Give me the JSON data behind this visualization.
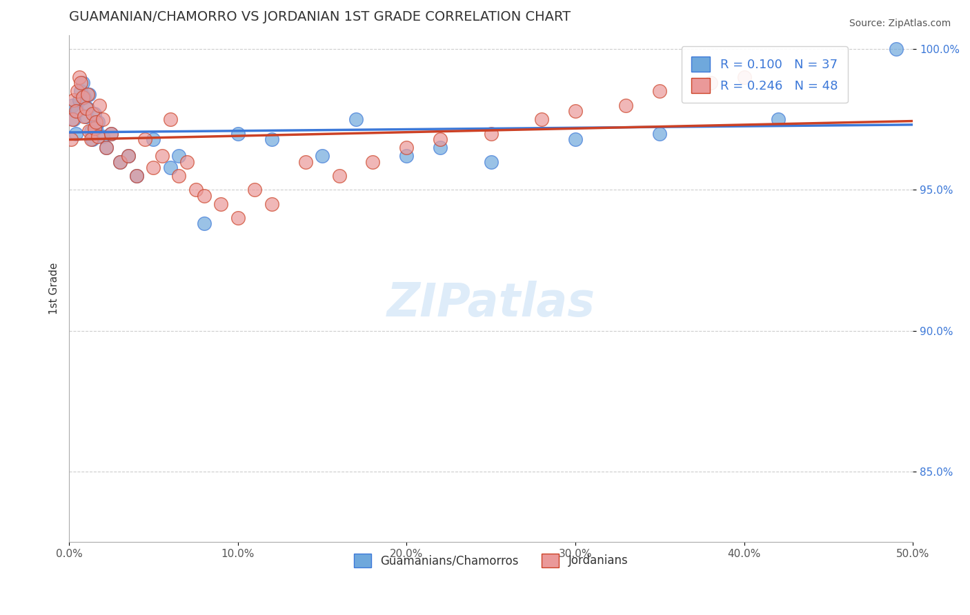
{
  "title": "GUAMANIAN/CHAMORRO VS JORDANIAN 1ST GRADE CORRELATION CHART",
  "source_text": "Source: ZipAtlas.com",
  "xlabel": "",
  "ylabel": "1st Grade",
  "xlim": [
    0.0,
    0.5
  ],
  "ylim": [
    0.825,
    1.005
  ],
  "xticks": [
    0.0,
    0.1,
    0.2,
    0.3,
    0.4,
    0.5
  ],
  "xticklabels": [
    "0.0%",
    "10.0%",
    "20.0%",
    "30.0%",
    "40.0%",
    "50.0%"
  ],
  "yticks": [
    0.85,
    0.9,
    0.95,
    1.0
  ],
  "yticklabels": [
    "85.0%",
    "90.0%",
    "95.0%",
    "100.0%"
  ],
  "blue_color": "#6fa8dc",
  "pink_color": "#ea9999",
  "blue_line_color": "#3c78d8",
  "pink_line_color": "#cc4125",
  "legend_blue_label": "R = 0.100   N = 37",
  "legend_pink_label": "R = 0.246   N = 48",
  "guam_legend": "Guamanians/Chamorros",
  "jordan_legend": "Jordanians",
  "watermark": "ZIPatlas",
  "blue_R": 0.1,
  "blue_N": 37,
  "pink_R": 0.246,
  "pink_N": 48,
  "blue_scatter_x": [
    0.002,
    0.003,
    0.004,
    0.005,
    0.006,
    0.007,
    0.008,
    0.009,
    0.01,
    0.011,
    0.012,
    0.013,
    0.014,
    0.015,
    0.016,
    0.017,
    0.02,
    0.022,
    0.025,
    0.03,
    0.035,
    0.04,
    0.05,
    0.06,
    0.065,
    0.08,
    0.1,
    0.12,
    0.15,
    0.17,
    0.2,
    0.22,
    0.25,
    0.3,
    0.35,
    0.42,
    0.49
  ],
  "blue_scatter_y": [
    0.98,
    0.975,
    0.97,
    0.978,
    0.982,
    0.985,
    0.988,
    0.983,
    0.976,
    0.979,
    0.984,
    0.971,
    0.968,
    0.977,
    0.972,
    0.974,
    0.969,
    0.965,
    0.97,
    0.96,
    0.962,
    0.955,
    0.968,
    0.958,
    0.962,
    0.938,
    0.97,
    0.968,
    0.962,
    0.975,
    0.962,
    0.965,
    0.96,
    0.968,
    0.97,
    0.975,
    1.0
  ],
  "pink_scatter_x": [
    0.001,
    0.002,
    0.003,
    0.004,
    0.005,
    0.006,
    0.007,
    0.008,
    0.009,
    0.01,
    0.011,
    0.012,
    0.013,
    0.014,
    0.015,
    0.016,
    0.017,
    0.018,
    0.02,
    0.022,
    0.025,
    0.03,
    0.035,
    0.04,
    0.045,
    0.05,
    0.055,
    0.06,
    0.065,
    0.07,
    0.075,
    0.08,
    0.09,
    0.1,
    0.11,
    0.12,
    0.14,
    0.16,
    0.18,
    0.2,
    0.22,
    0.25,
    0.28,
    0.3,
    0.33,
    0.35,
    0.38,
    0.4
  ],
  "pink_scatter_y": [
    0.968,
    0.975,
    0.982,
    0.978,
    0.985,
    0.99,
    0.988,
    0.983,
    0.976,
    0.979,
    0.984,
    0.971,
    0.968,
    0.977,
    0.972,
    0.974,
    0.969,
    0.98,
    0.975,
    0.965,
    0.97,
    0.96,
    0.962,
    0.955,
    0.968,
    0.958,
    0.962,
    0.975,
    0.955,
    0.96,
    0.95,
    0.948,
    0.945,
    0.94,
    0.95,
    0.945,
    0.96,
    0.955,
    0.96,
    0.965,
    0.968,
    0.97,
    0.975,
    0.978,
    0.98,
    0.985,
    0.988,
    0.99
  ]
}
